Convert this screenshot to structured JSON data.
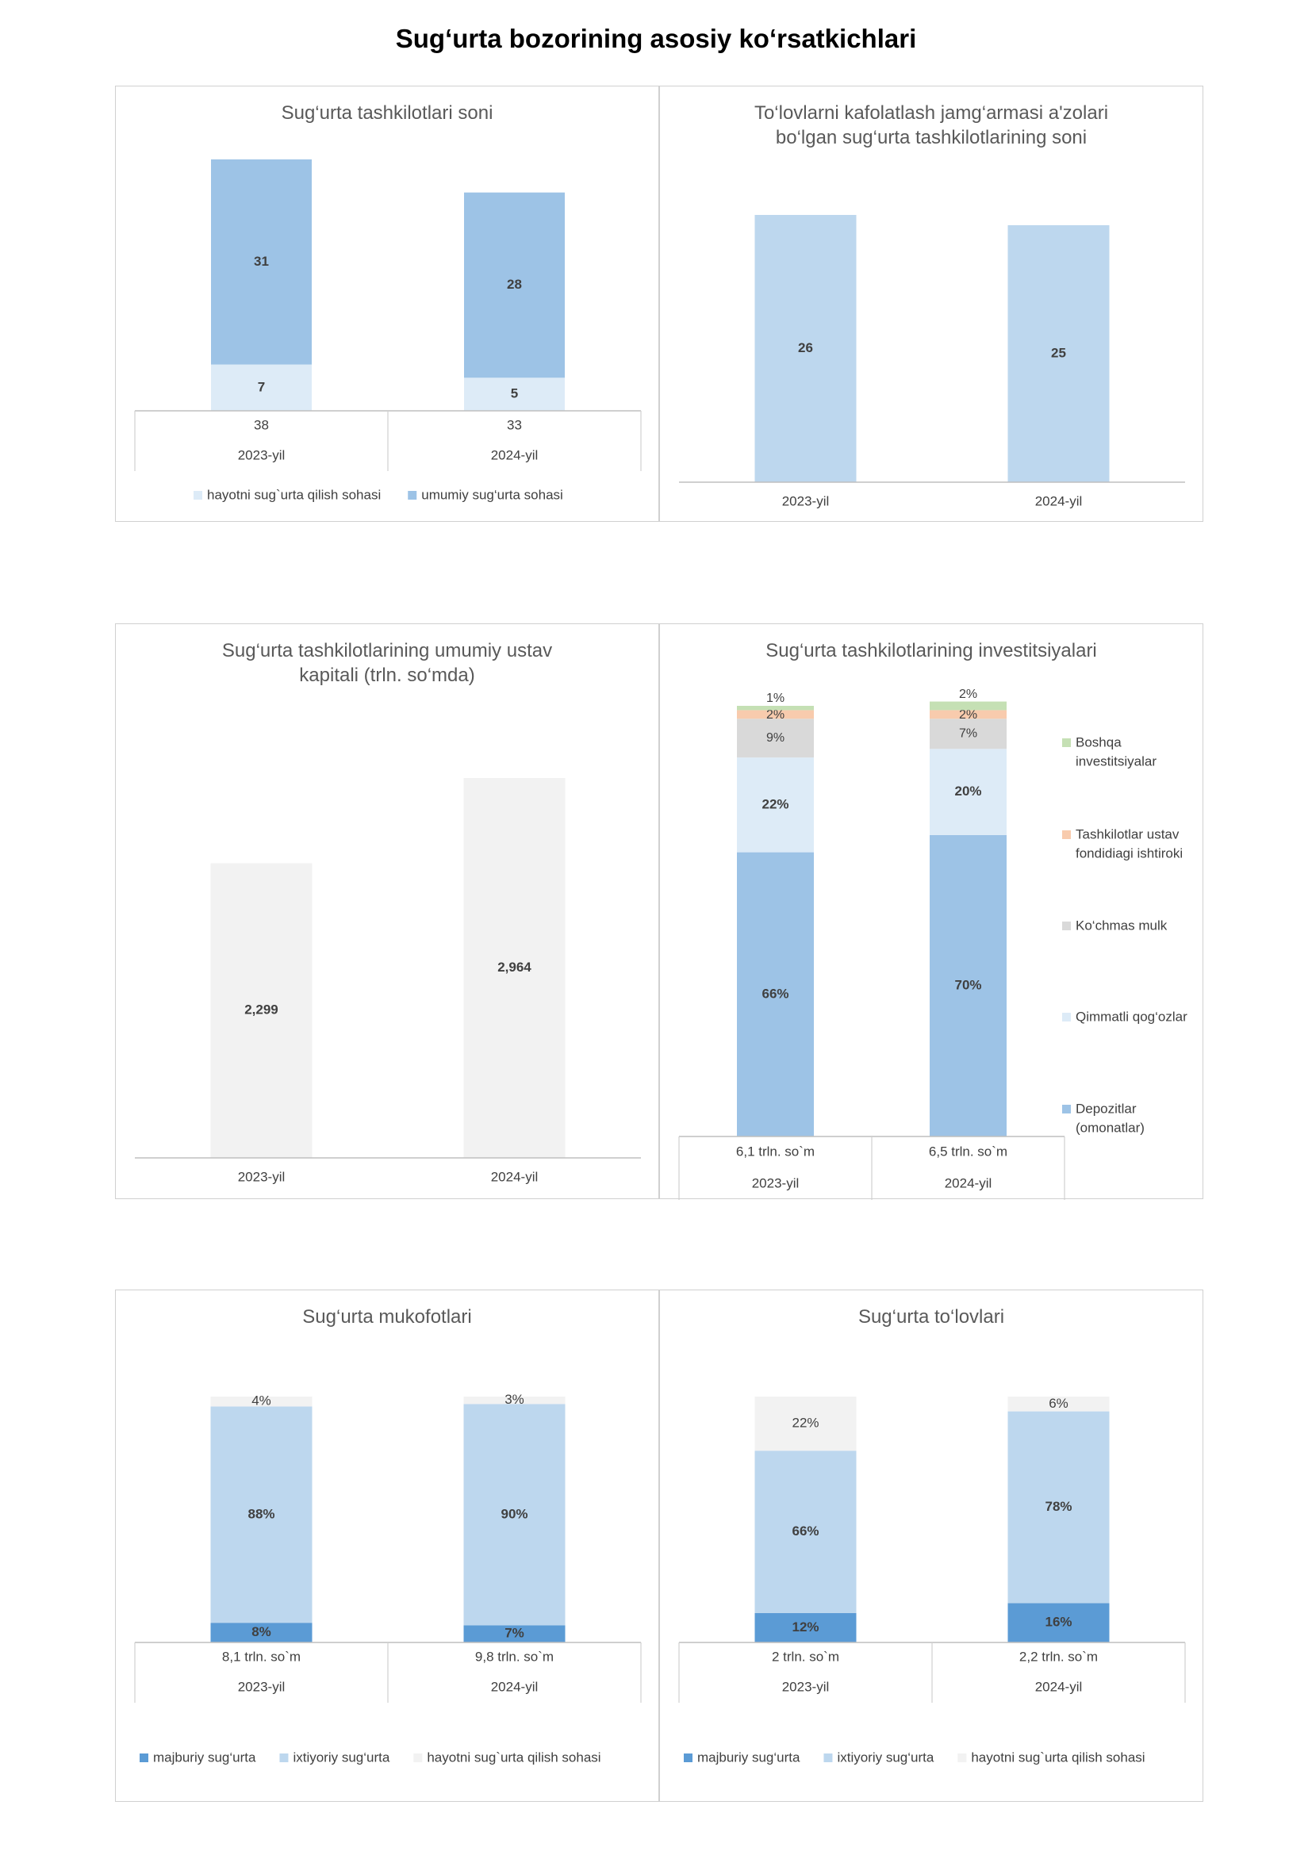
{
  "page": {
    "title": "Sug‘urta bozorining asosiy ko‘rsatkichlari"
  },
  "chart_data": [
    {
      "id": "c1",
      "type": "bar",
      "stacked": true,
      "title": "Sug‘urta tashkilotlari soni",
      "categories": [
        "2023-yil",
        "2024-yil"
      ],
      "totals": [
        "38",
        "33"
      ],
      "series": [
        {
          "name": "hayotni sug`urta qilish sohasi",
          "values": [
            7,
            5
          ],
          "color": "#ddebf7"
        },
        {
          "name": "umumiy sug‘urta sohasi",
          "values": [
            31,
            28
          ],
          "color": "#9dc3e6"
        }
      ],
      "legend": "bottom"
    },
    {
      "id": "c2",
      "type": "bar",
      "title": "To‘lovlarni kafolatlash jamg‘armasi a'zolari bo‘lgan sug‘urta  tashkilotlarining soni",
      "categories": [
        "2023-yil",
        "2024-yil"
      ],
      "values": [
        26,
        25
      ],
      "color": "#bdd7ee"
    },
    {
      "id": "c3",
      "type": "bar",
      "title": "Sug‘urta tashkilotlarining umumiy ustav kapitali (trln. so‘mda)",
      "categories": [
        "2023-yil",
        "2024-yil"
      ],
      "values": [
        2.299,
        2.964
      ],
      "labels": [
        "2,299",
        "2,964"
      ],
      "color": "#f2f2f2"
    },
    {
      "id": "c4",
      "type": "bar",
      "stacked": true,
      "percent": true,
      "title": "Sug‘urta tashkilotlarining investitsiyalari",
      "categories": [
        "2023-yil",
        "2024-yil"
      ],
      "totals": [
        "6,1 trln. so`m",
        "6,5 trln. so`m"
      ],
      "series": [
        {
          "name": "Depozitlar (omonatlar)",
          "values": [
            66,
            70
          ],
          "labels": [
            "66%",
            "70%"
          ],
          "color": "#9dc3e6"
        },
        {
          "name": "Qimmatli qog‘ozlar",
          "values": [
            22,
            20
          ],
          "labels": [
            "22%",
            "20%"
          ],
          "color": "#ddebf7"
        },
        {
          "name": "Ko‘chmas mulk",
          "values": [
            9,
            7
          ],
          "labels": [
            "9%",
            "7%"
          ],
          "color": "#d9d9d9"
        },
        {
          "name": "Tashkilotlar ustav fondidiagi ishtiroki",
          "values": [
            2,
            2
          ],
          "labels": [
            "2%",
            "2%"
          ],
          "color": "#f8cbad"
        },
        {
          "name": "Boshqa investitsiyalar",
          "values": [
            1,
            2
          ],
          "labels": [
            "1%",
            "2%"
          ],
          "color": "#c5e0b4"
        }
      ],
      "legend": "right"
    },
    {
      "id": "c5",
      "type": "bar",
      "stacked": true,
      "percent": true,
      "title": "Sug‘urta mukofotlari",
      "categories": [
        "2023-yil",
        "2024-yil"
      ],
      "totals": [
        "8,1 trln. so`m",
        "9,8 trln. so`m"
      ],
      "series": [
        {
          "name": "majburiy sug‘urta",
          "values": [
            8,
            7
          ],
          "labels": [
            "8%",
            "7%"
          ],
          "color": "#5b9bd5"
        },
        {
          "name": "ixtiyoriy sug‘urta",
          "values": [
            88,
            90
          ],
          "labels": [
            "88%",
            "90%"
          ],
          "color": "#bdd7ee"
        },
        {
          "name": "hayotni sug`urta qilish sohasi",
          "values": [
            4,
            3
          ],
          "labels": [
            "4%",
            "3%"
          ],
          "color": "#f2f2f2"
        }
      ],
      "legend": "bottom"
    },
    {
      "id": "c6",
      "type": "bar",
      "stacked": true,
      "percent": true,
      "title": "Sug‘urta to‘lovlari",
      "categories": [
        "2023-yil",
        "2024-yil"
      ],
      "totals": [
        "2 trln. so`m",
        "2,2 trln. so`m"
      ],
      "series": [
        {
          "name": "majburiy sug‘urta",
          "values": [
            12,
            16
          ],
          "labels": [
            "12%",
            "16%"
          ],
          "color": "#5b9bd5"
        },
        {
          "name": "ixtiyoriy sug‘urta",
          "values": [
            66,
            78
          ],
          "labels": [
            "66%",
            "78%"
          ],
          "color": "#bdd7ee"
        },
        {
          "name": "hayotni sug`urta qilish sohasi",
          "values": [
            22,
            6
          ],
          "labels": [
            "22%",
            "6%"
          ],
          "color": "#f2f2f2"
        }
      ],
      "legend": "bottom"
    }
  ]
}
